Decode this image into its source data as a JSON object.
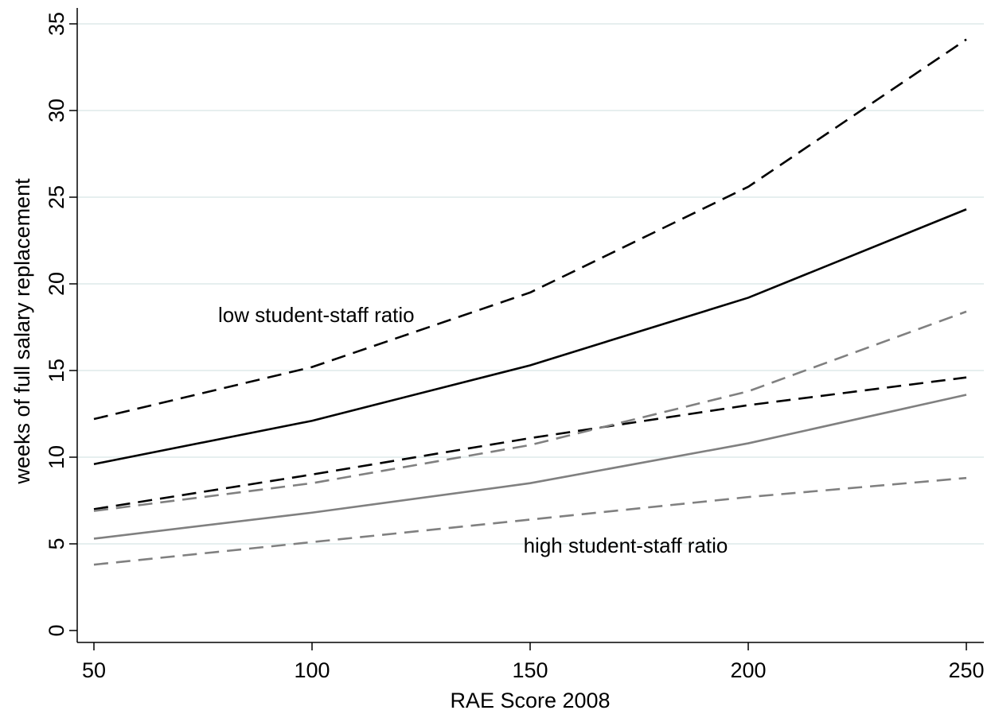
{
  "chart_data": {
    "type": "line",
    "xlabel": "RAE Score 2008",
    "ylabel": "weeks of full salary replacement",
    "x": [
      50,
      100,
      150,
      200,
      250
    ],
    "xticks": [
      50,
      100,
      150,
      200,
      250
    ],
    "yticks": [
      0,
      5,
      10,
      15,
      20,
      25,
      30,
      35
    ],
    "xlim": [
      50,
      250
    ],
    "ylim": [
      0,
      35
    ],
    "grid": "horizontal",
    "legend": "none",
    "series": [
      {
        "values": [
          12.2,
          15.2,
          19.5,
          25.6,
          34.1
        ],
        "color": "#000000",
        "style": "dashed"
      },
      {
        "values": [
          9.6,
          12.1,
          15.3,
          19.2,
          24.3
        ],
        "color": "#000000",
        "style": "solid"
      },
      {
        "values": [
          7.0,
          9.0,
          11.1,
          13.0,
          14.6
        ],
        "color": "#000000",
        "style": "dashed"
      },
      {
        "values": [
          6.9,
          8.5,
          10.7,
          13.8,
          18.4
        ],
        "color": "#808080",
        "style": "dashed"
      },
      {
        "values": [
          5.3,
          6.8,
          8.5,
          10.8,
          13.6
        ],
        "color": "#808080",
        "style": "solid"
      },
      {
        "values": [
          3.8,
          5.1,
          6.4,
          7.7,
          8.8
        ],
        "color": "#808080",
        "style": "dashed"
      }
    ],
    "annotations": [
      {
        "text": "low student-staff ratio",
        "x": 50,
        "y": 18.2
      },
      {
        "text": "high student-staff ratio",
        "x": 120,
        "y": 4.9
      }
    ]
  }
}
